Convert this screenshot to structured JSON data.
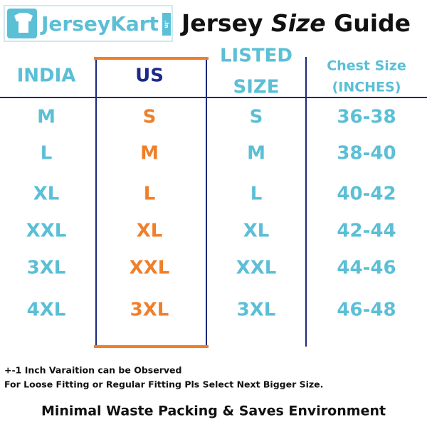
{
  "header": {
    "logo": "JerseyKart",
    "logo_suffix": ".in",
    "title": [
      "Jersey",
      "Size",
      "Guide"
    ]
  },
  "table": {
    "columns": [
      [
        "INDIA"
      ],
      [
        "US"
      ],
      [
        "LISTED",
        "SIZE"
      ],
      [
        "Chest Size",
        "(INCHES)"
      ]
    ],
    "rows": [
      [
        "M",
        "S",
        "S",
        "36-38"
      ],
      [
        "L",
        "M",
        "M",
        "38-40"
      ],
      [
        "XL",
        "L",
        "L",
        "40-42"
      ],
      [
        "XXL",
        "XL",
        "XL",
        "42-44"
      ],
      [
        "3XL",
        "XXL",
        "XXL",
        "44-46"
      ],
      [
        "4XL",
        "3XL",
        "3XL",
        "46-48"
      ]
    ]
  },
  "notes": [
    "+-1 Inch Varaition can be Observed",
    "For Loose Fitting or Regular Fitting Pls Select Next Bigger Size."
  ],
  "footer": "Minimal Waste Packing & Saves Environment"
}
